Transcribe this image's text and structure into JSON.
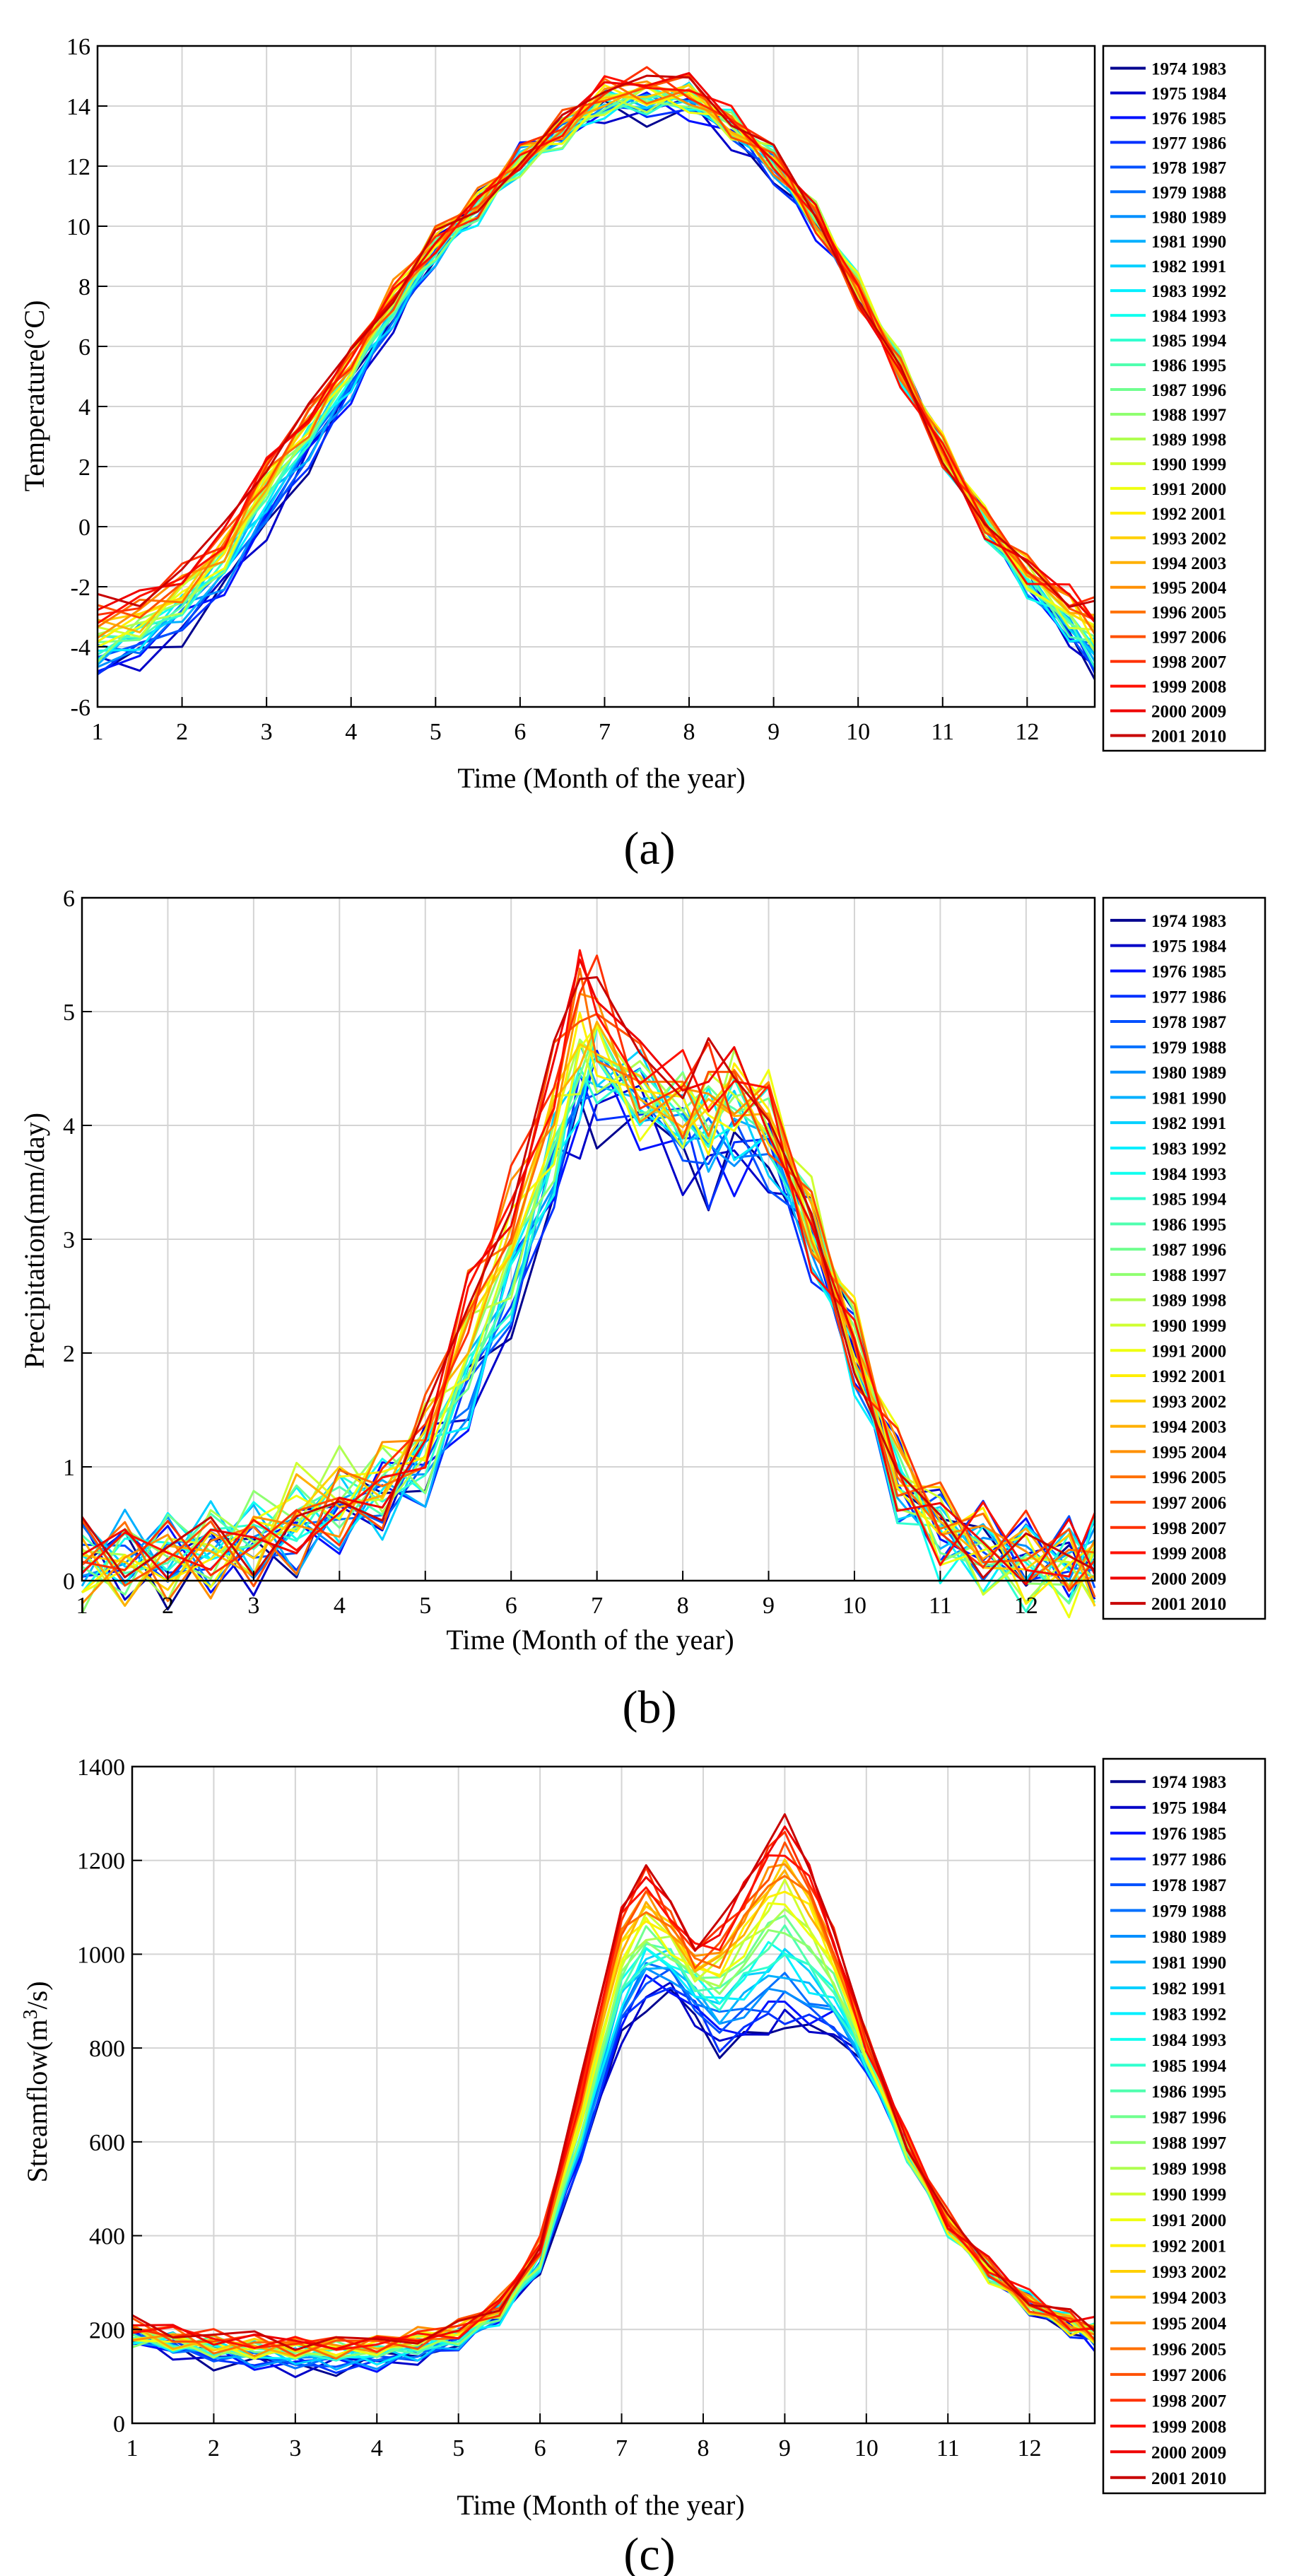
{
  "legend_entries": [
    "1974 1983",
    "1975 1984",
    "1976 1985",
    "1977 1986",
    "1978 1987",
    "1979 1988",
    "1980 1989",
    "1981 1990",
    "1982 1991",
    "1983 1992",
    "1984 1993",
    "1985 1994",
    "1986 1995",
    "1987 1996",
    "1988 1997",
    "1989 1998",
    "1990 1999",
    "1991 2000",
    "1992 2001",
    "1993 2002",
    "1994 2003",
    "1995 2004",
    "1996 2005",
    "1997 2006",
    "1998 2007",
    "1999 2008",
    "2000 2009",
    "2001 2010"
  ],
  "series_colors": [
    "#00008f",
    "#0000c8",
    "#0010ff",
    "#0030ff",
    "#0050ff",
    "#0070ff",
    "#0090ff",
    "#00b0ff",
    "#00d0ff",
    "#00efff",
    "#10ffef",
    "#30ffcf",
    "#50ffaf",
    "#70ff8f",
    "#8fff70",
    "#afff50",
    "#cfff30",
    "#efff10",
    "#ffef00",
    "#ffd000",
    "#ffb000",
    "#ff9000",
    "#ff7000",
    "#ff5000",
    "#ff3000",
    "#ff1000",
    "#ef0000",
    "#c80000"
  ],
  "chart_data": [
    {
      "type": "line",
      "caption": "(a)",
      "xlabel": "Time (Month of the year)",
      "ylabel": "Temperature(°C)",
      "xlim": [
        1,
        12.8
      ],
      "ylim": [
        -6,
        16
      ],
      "xticks": [
        "1",
        "2",
        "3",
        "4",
        "5",
        "6",
        "7",
        "8",
        "9",
        "10",
        "11",
        "12"
      ],
      "yticks": [
        "-6",
        "-4",
        "-2",
        "0",
        "2",
        "4",
        "6",
        "8",
        "10",
        "12",
        "14",
        "16"
      ],
      "grid": true,
      "legend_position": "right",
      "x": [
        1.0,
        1.5,
        2.0,
        2.5,
        3.0,
        3.5,
        4.0,
        4.5,
        5.0,
        5.5,
        6.0,
        6.5,
        7.0,
        7.5,
        8.0,
        8.5,
        9.0,
        9.5,
        10.0,
        10.5,
        11.0,
        11.5,
        12.0,
        12.5,
        12.8
      ],
      "series_low": [
        -4.9,
        -4.4,
        -3.4,
        -2.0,
        0.1,
        2.3,
        4.5,
        6.9,
        9.1,
        10.6,
        12.2,
        13.0,
        13.8,
        13.8,
        13.9,
        13.1,
        11.9,
        10.1,
        8.0,
        5.3,
        2.6,
        0.1,
        -2.0,
        -3.8,
        -4.8
      ],
      "series_high": [
        -2.8,
        -2.4,
        -1.5,
        -0.2,
        2.3,
        4.0,
        5.9,
        7.9,
        9.6,
        10.7,
        12.2,
        13.3,
        14.6,
        14.8,
        14.7,
        13.6,
        12.4,
        10.4,
        7.8,
        5.2,
        2.5,
        0.1,
        -1.4,
        -2.3,
        -2.8
      ]
    },
    {
      "type": "line",
      "caption": "(b)",
      "xlabel": "Time (Month of the year)",
      "ylabel": "Precipitation(mm/day)",
      "xlim": [
        1,
        12.8
      ],
      "ylim": [
        0,
        6
      ],
      "xticks": [
        "1",
        "2",
        "3",
        "4",
        "5",
        "6",
        "7",
        "8",
        "9",
        "10",
        "11",
        "12"
      ],
      "yticks": [
        "0",
        "1",
        "2",
        "3",
        "4",
        "5",
        "6"
      ],
      "grid": true,
      "legend_position": "right",
      "x": [
        1.0,
        1.5,
        2.0,
        2.5,
        3.0,
        3.5,
        4.0,
        4.5,
        5.0,
        5.5,
        6.0,
        6.5,
        6.8,
        7.0,
        7.5,
        8.0,
        8.3,
        8.6,
        9.0,
        9.5,
        10.0,
        10.5,
        11.0,
        11.5,
        12.0,
        12.5,
        12.8
      ],
      "series_low": [
        0.14,
        0.16,
        0.19,
        0.24,
        0.32,
        0.42,
        0.64,
        0.78,
        0.95,
        1.45,
        2.3,
        3.35,
        3.95,
        4.15,
        4.1,
        3.8,
        3.6,
        3.75,
        3.75,
        3.05,
        2.05,
        0.85,
        0.42,
        0.25,
        0.14,
        0.12,
        0.14
      ],
      "series_high": [
        0.15,
        0.19,
        0.24,
        0.3,
        0.38,
        0.52,
        0.7,
        0.85,
        1.35,
        2.55,
        3.35,
        4.45,
        5.35,
        5.15,
        4.45,
        4.4,
        4.55,
        4.5,
        4.25,
        3.15,
        2.1,
        0.98,
        0.45,
        0.28,
        0.17,
        0.13,
        0.17
      ],
      "series_bump": [
        0.16,
        0.18,
        0.22,
        0.27,
        0.36,
        0.82,
        0.78,
        0.8,
        1.05,
        1.95,
        2.9,
        3.95,
        4.6,
        4.7,
        4.3,
        4.2,
        4.0,
        4.35,
        4.1,
        3.1,
        2.05,
        0.92,
        0.43,
        0.26,
        0.15,
        0.12,
        0.15
      ]
    },
    {
      "type": "line",
      "caption": "(c)",
      "xlabel": "Time (Month of the year)",
      "ylabel": "Streamflow(m³/s)",
      "ylabel_main": "Streamflow(m",
      "ylabel_sup": "3",
      "ylabel_end": "/s)",
      "xlim": [
        1,
        12.8
      ],
      "ylim": [
        0,
        1400
      ],
      "xticks": [
        "1",
        "2",
        "3",
        "4",
        "5",
        "6",
        "7",
        "8",
        "9",
        "10",
        "11",
        "12"
      ],
      "yticks": [
        "0",
        "200",
        "400",
        "600",
        "800",
        "1000",
        "1200",
        "1400"
      ],
      "grid": true,
      "legend_position": "right",
      "x": [
        1.0,
        1.5,
        2.0,
        2.5,
        3.0,
        3.5,
        4.0,
        4.5,
        5.0,
        5.5,
        6.0,
        6.5,
        7.0,
        7.3,
        7.6,
        7.9,
        8.2,
        8.5,
        8.8,
        9.0,
        9.3,
        9.6,
        10.0,
        10.5,
        11.0,
        11.5,
        12.0,
        12.5,
        12.8
      ],
      "series_low": [
        175,
        155,
        140,
        130,
        125,
        125,
        130,
        145,
        175,
        230,
        330,
        560,
        820,
        900,
        920,
        870,
        800,
        820,
        840,
        850,
        830,
        830,
        760,
        570,
        420,
        320,
        250,
        205,
        175
      ],
      "series_high": [
        205,
        195,
        185,
        180,
        178,
        178,
        180,
        190,
        205,
        250,
        380,
        720,
        1100,
        1180,
        1100,
        1020,
        1060,
        1150,
        1250,
        1290,
        1200,
        1050,
        820,
        600,
        430,
        330,
        260,
        220,
        205
      ]
    }
  ]
}
